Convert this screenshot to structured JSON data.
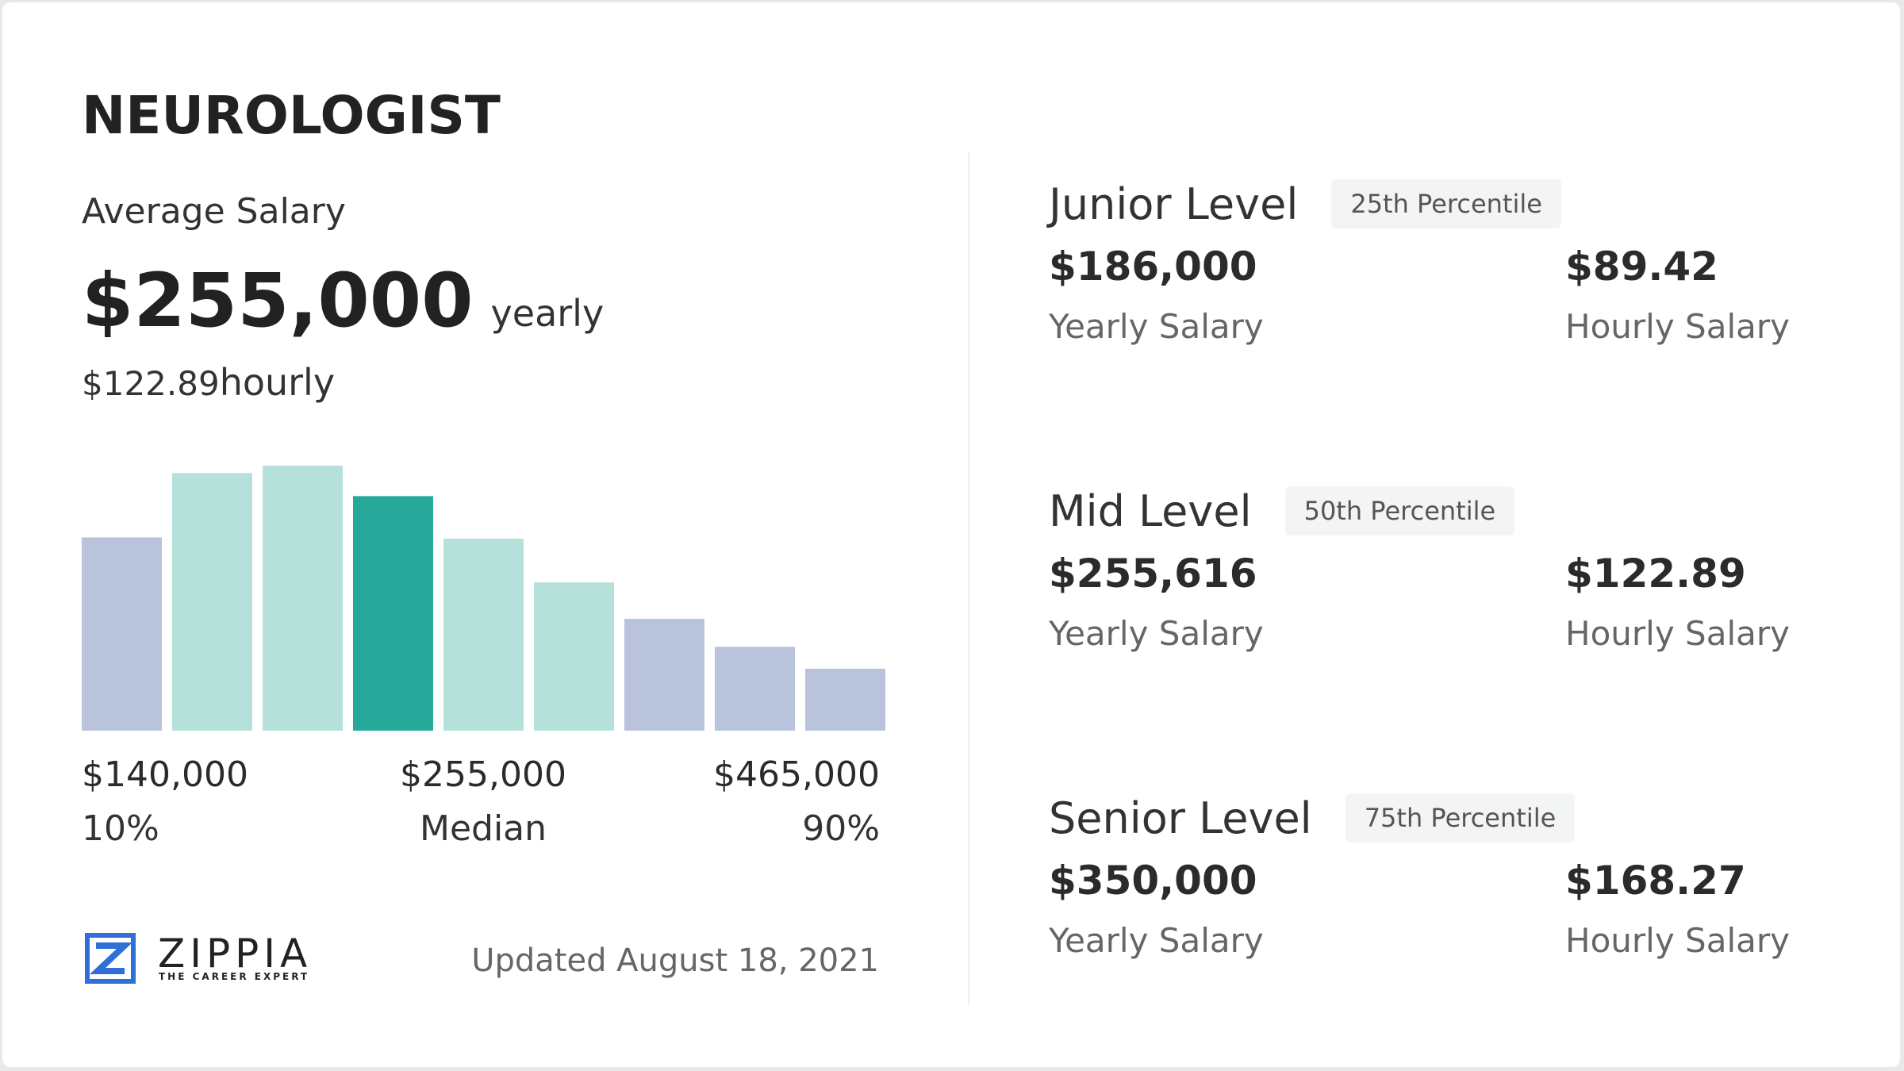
{
  "header": {
    "title": "NEUROLOGIST"
  },
  "average": {
    "label": "Average Salary",
    "yearly_value": "$255,000",
    "yearly_unit": "yearly",
    "hourly_value": "$122.89",
    "hourly_unit": "hourly"
  },
  "chart_data": {
    "type": "bar",
    "categories": [
      null,
      null,
      null,
      null,
      null,
      null,
      null,
      null,
      null
    ],
    "values": [
      159,
      212,
      218,
      193,
      158,
      122,
      92,
      69,
      51
    ],
    "colors": [
      "#b9c3db",
      "#b6e1db",
      "#b6e1db",
      "#26a99a",
      "#b6e1db",
      "#b6e1db",
      "#b9c3db",
      "#b9c3db",
      "#b9c3db"
    ],
    "ylim": [
      0,
      220
    ]
  },
  "range_labels": [
    {
      "amount": "$140,000",
      "label": "10%"
    },
    {
      "amount": "$255,000",
      "label": "Median"
    },
    {
      "amount": "$465,000",
      "label": "90%"
    }
  ],
  "footer": {
    "brand": "ZIPPIA",
    "tagline": "THE CAREER EXPERT",
    "updated": "Updated August 18, 2021"
  },
  "levels": [
    {
      "name": "Junior Level",
      "percentile": "25th Percentile",
      "yearly": "$186,000",
      "yearly_label": "Yearly Salary",
      "hourly": "$89.42",
      "hourly_label": "Hourly Salary"
    },
    {
      "name": "Mid Level",
      "percentile": "50th Percentile",
      "yearly": "$255,616",
      "yearly_label": "Yearly Salary",
      "hourly": "$122.89",
      "hourly_label": "Hourly Salary"
    },
    {
      "name": "Senior Level",
      "percentile": "75th Percentile",
      "yearly": "$350,000",
      "yearly_label": "Yearly Salary",
      "hourly": "$168.27",
      "hourly_label": "Hourly Salary"
    }
  ]
}
